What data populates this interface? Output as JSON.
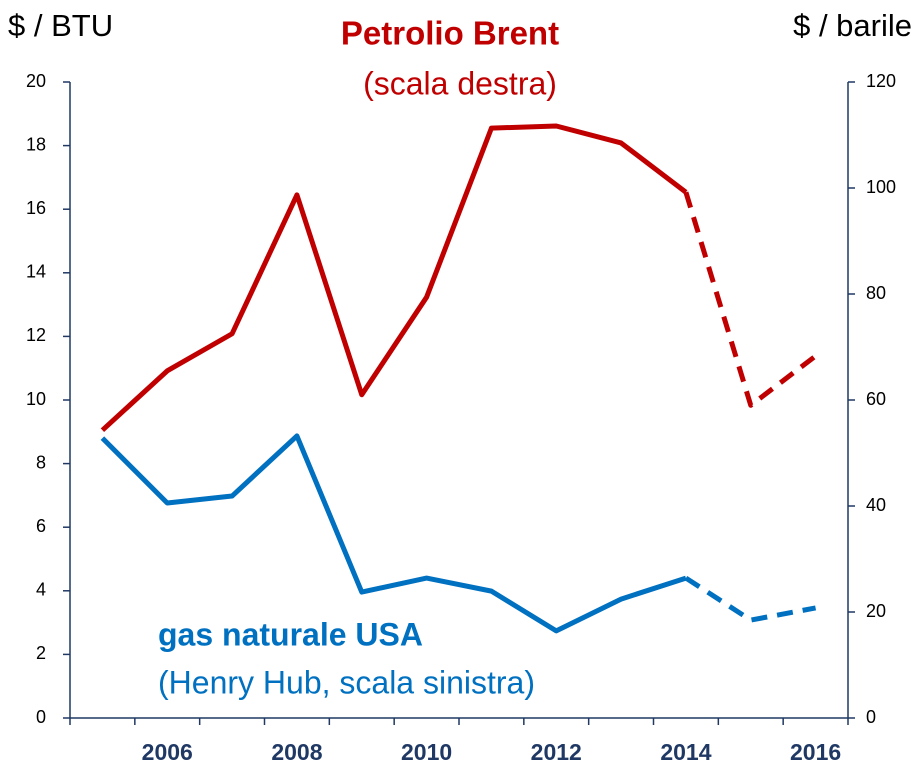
{
  "chart_data": {
    "type": "line",
    "y_axis_label": "$ / BTU",
    "y2_axis_label": "$ / barile",
    "x": [
      2005,
      2006,
      2007,
      2008,
      2009,
      2010,
      2011,
      2012,
      2013,
      2014,
      2015,
      2016
    ],
    "categories": [
      null,
      2006,
      null,
      2008,
      null,
      2010,
      null,
      2012,
      null,
      2014,
      null,
      2016
    ],
    "xlim": [
      2004.5,
      2016.5
    ],
    "ylim": [
      0,
      20
    ],
    "yticks": [
      0,
      2,
      4,
      6,
      8,
      10,
      12,
      14,
      16,
      18,
      20
    ],
    "y2lim": [
      0,
      120
    ],
    "y2ticks": [
      0,
      20,
      40,
      60,
      80,
      100,
      120
    ],
    "series": [
      {
        "name": "Petrolio Brent",
        "note": "(scala destra)",
        "color": "#c00000",
        "axis": "y2",
        "dashed_from_x": 2014,
        "values": [
          54.3,
          65.5,
          72.5,
          98.7,
          61.0,
          79.4,
          111.3,
          111.7,
          108.5,
          99.2,
          59.0,
          68.3
        ]
      },
      {
        "name": "gas naturale USA",
        "note": "(Henry Hub, scala sinistra)",
        "color": "#0070c0",
        "axis": "y",
        "dashed_from_x": 2014,
        "values": [
          8.8,
          6.76,
          6.98,
          8.87,
          3.96,
          4.4,
          3.99,
          2.74,
          3.74,
          4.4,
          3.08,
          3.46
        ]
      }
    ],
    "axis_color": "#1f3864"
  }
}
